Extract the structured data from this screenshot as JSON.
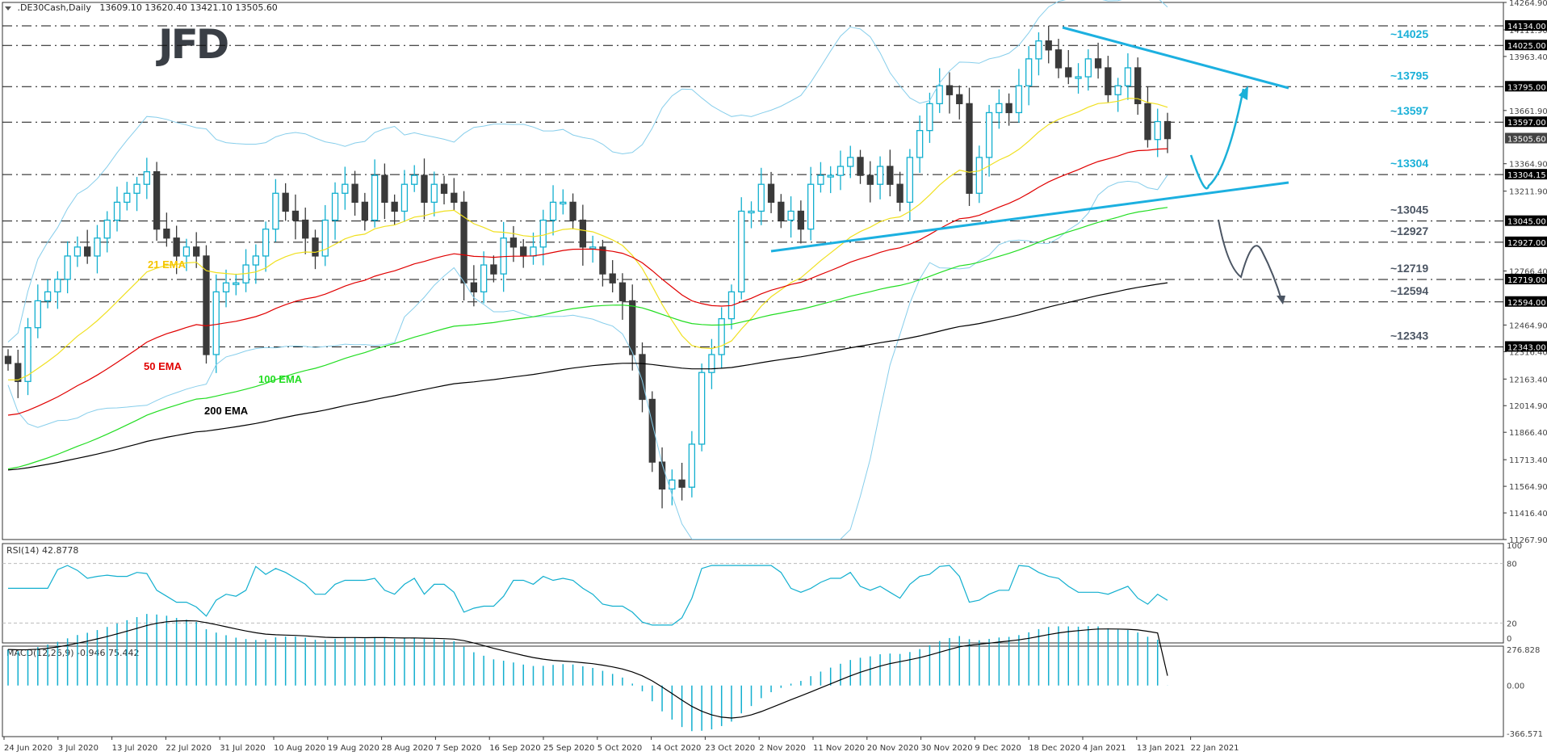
{
  "header": {
    "symbol": ".DE30Cash,Daily",
    "ohlc": "13609.10 13620.40 13421.10 13505.60"
  },
  "logo": {
    "text": "JFD"
  },
  "colors": {
    "bull": "#12afcf",
    "bear": "#3a3a3a",
    "bollinger": "#87ceeb",
    "ema21": "#f0e020",
    "ema50": "#e00000",
    "ema100": "#22dd22",
    "ema200": "#000000",
    "trendline": "#1cb0e0",
    "ann_resistance": "#1ab0d8",
    "ann_support": "#4b5563",
    "rsi": "#12afcf",
    "macd_hist": "#12afcf",
    "macd_signal": "#000000"
  },
  "chart_data": [
    {
      "type": "candlestick",
      "title": ".DE30Cash,Daily",
      "ohlc_last": {
        "open": 13609.1,
        "high": 13620.4,
        "low": 13421.1,
        "close": 13505.6
      },
      "ylim": [
        11267.9,
        14264.9
      ],
      "y_ticks": [
        14264.9,
        14111.9,
        13963.4,
        13661.9,
        13364.9,
        13211.9,
        12766.4,
        12464.9,
        12316.4,
        12163.4,
        12014.9,
        11866.4,
        11713.4,
        11564.9,
        11416.4,
        11267.9
      ],
      "x_ticks": [
        "24 Jun 2020",
        "3 Jul 2020",
        "13 Jul 2020",
        "22 Jul 2020",
        "31 Jul 2020",
        "10 Aug 2020",
        "19 Aug 2020",
        "28 Aug 2020",
        "7 Sep 2020",
        "16 Sep 2020",
        "25 Sep 2020",
        "5 Oct 2020",
        "14 Oct 2020",
        "23 Oct 2020",
        "2 Nov 2020",
        "11 Nov 2020",
        "20 Nov 2020",
        "30 Nov 2020",
        "9 Dec 2020",
        "18 Dec 2020",
        "4 Jan 2021",
        "13 Jan 2021",
        "22 Jan 2021"
      ],
      "current_price_label": "13505.60",
      "horizontal_levels": [
        {
          "value": 14134.0,
          "label": "14134.00",
          "annotation": ""
        },
        {
          "value": 14025.0,
          "label": "14025.00",
          "annotation": "~14025",
          "kind": "resistance"
        },
        {
          "value": 13795.0,
          "label": "13795.00",
          "annotation": "~13795",
          "kind": "resistance"
        },
        {
          "value": 13597.0,
          "label": "13597.00",
          "annotation": "~13597",
          "kind": "resistance"
        },
        {
          "value": 13304.15,
          "label": "13304.15",
          "annotation": "~13304",
          "kind": "resistance"
        },
        {
          "value": 13045.0,
          "label": "13045.00",
          "annotation": "~13045",
          "kind": "support"
        },
        {
          "value": 12927.0,
          "label": "12927.00",
          "annotation": "~12927",
          "kind": "support"
        },
        {
          "value": 12719.0,
          "label": "12719.00",
          "annotation": "~12719",
          "kind": "support"
        },
        {
          "value": 12594.0,
          "label": "12594.00",
          "annotation": "~12594",
          "kind": "support"
        },
        {
          "value": 12343.0,
          "label": "12343.00",
          "annotation": "~12343",
          "kind": "support"
        }
      ],
      "indicator_labels": [
        "21 EMA",
        "50 EMA",
        "100 EMA",
        "200 EMA"
      ],
      "series_close_approx": [
        12250,
        12150,
        12450,
        12600,
        12650,
        12720,
        12850,
        12900,
        12850,
        12950,
        13050,
        13150,
        13200,
        13250,
        13320,
        13000,
        12950,
        12850,
        12900,
        12850,
        12300,
        12650,
        12700,
        12700,
        12800,
        12850,
        13000,
        13200,
        13100,
        13050,
        12950,
        12850,
        13050,
        13200,
        13250,
        13150,
        13050,
        13300,
        13150,
        13100,
        13250,
        13300,
        13150,
        13250,
        13200,
        13150,
        12700,
        12650,
        12800,
        12750,
        12950,
        12900,
        12850,
        12900,
        13050,
        13150,
        13150,
        13050,
        12900,
        12900,
        12750,
        12700,
        12600,
        12300,
        12050,
        11700,
        11550,
        11600,
        11560,
        11800,
        12200,
        12300,
        12500,
        12650,
        13100,
        13100,
        13250,
        13150,
        13050,
        13100,
        13000,
        13250,
        13300,
        13300,
        13350,
        13400,
        13300,
        13250,
        13350,
        13250,
        13150,
        13400,
        13550,
        13700,
        13800,
        13750,
        13700,
        13200,
        13400,
        13650,
        13700,
        13650,
        13800,
        13950,
        14050,
        14000,
        13900,
        13850,
        13850,
        13950,
        13900,
        13750,
        13800,
        13900,
        13700,
        13500,
        13600,
        13505
      ],
      "rsi": {
        "label": "RSI(14) 42.8778",
        "period": 14,
        "value": 42.8778,
        "ylim": [
          0,
          100
        ],
        "levels": [
          20,
          80
        ]
      },
      "macd": {
        "label": "MACD(12,26,9) -0.946 75.442",
        "params": [
          12,
          26,
          9
        ],
        "main": -0.946,
        "signal": 75.442,
        "ylim": [
          -366.571,
          276.828
        ],
        "y_ticks": [
          276.828,
          0.0,
          -366.571
        ]
      }
    }
  ]
}
